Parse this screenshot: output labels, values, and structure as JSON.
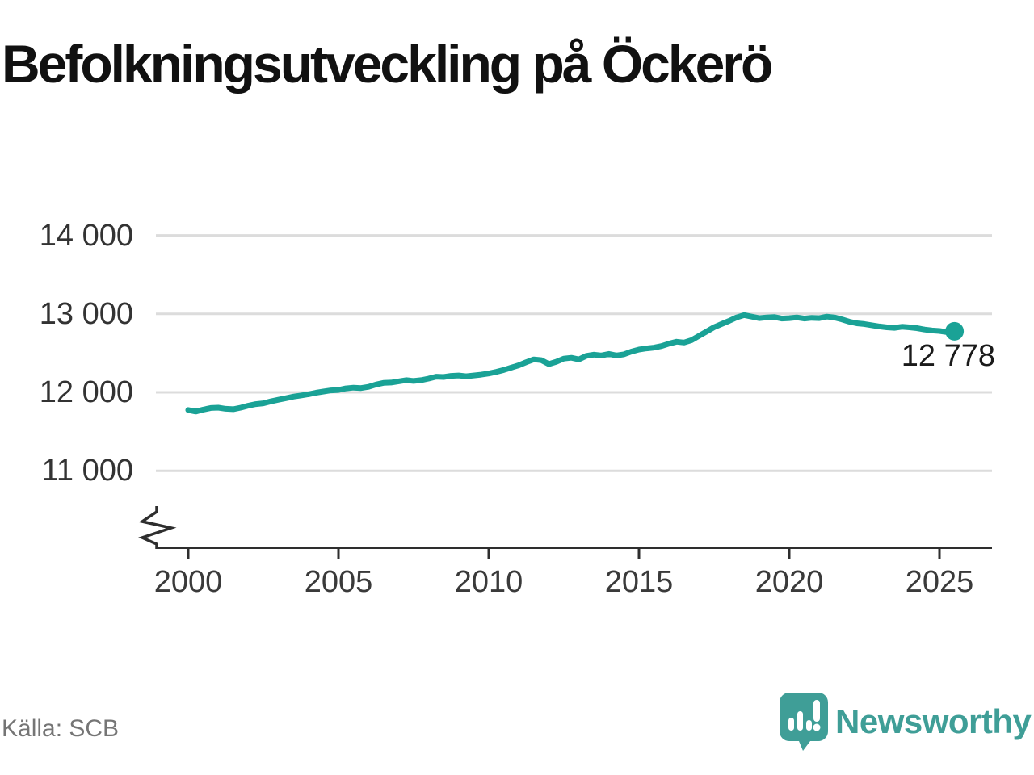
{
  "title": "Befolkningsutveckling på Öckerö",
  "source": "Källa: SCB",
  "branding": {
    "wordmark": "Newsworthy",
    "icon": "newsworthy-speech-bubble-barchart-icon"
  },
  "colors": {
    "line": "#1aa296",
    "grid": "#dcdcdc",
    "axis": "#2e2e2e",
    "brand": "#3f9e97",
    "title_text": "#111111",
    "tick_text": "#333333",
    "source_text": "#757575",
    "value_label_text": "#1a1a1a",
    "background": "#ffffff"
  },
  "chart_data": {
    "type": "line",
    "title": "Befolkningsutveckling på Öckerö",
    "xlabel": "",
    "ylabel": "",
    "grid": "horizontal",
    "legend": "none",
    "y_axis_break": true,
    "xlim": [
      1998.9,
      2026.7
    ],
    "ylim": [
      11000,
      14000
    ],
    "x_ticks": [
      2000,
      2005,
      2010,
      2015,
      2020,
      2025
    ],
    "y_ticks": [
      "14 000",
      "13 000",
      "12 000",
      "11 000"
    ],
    "y_tick_values": [
      14000,
      13000,
      12000,
      11000
    ],
    "end_label": "12 778",
    "last_value": 12778,
    "series": [
      {
        "name": "Befolkning",
        "points": [
          [
            2000.0,
            11775
          ],
          [
            2000.25,
            11755
          ],
          [
            2000.5,
            11780
          ],
          [
            2000.75,
            11800
          ],
          [
            2001.0,
            11805
          ],
          [
            2001.25,
            11790
          ],
          [
            2001.5,
            11785
          ],
          [
            2001.75,
            11805
          ],
          [
            2002.0,
            11830
          ],
          [
            2002.25,
            11850
          ],
          [
            2002.5,
            11860
          ],
          [
            2002.75,
            11885
          ],
          [
            2003.0,
            11905
          ],
          [
            2003.25,
            11925
          ],
          [
            2003.5,
            11945
          ],
          [
            2003.75,
            11960
          ],
          [
            2004.0,
            11975
          ],
          [
            2004.25,
            11995
          ],
          [
            2004.5,
            12010
          ],
          [
            2004.75,
            12025
          ],
          [
            2005.0,
            12030
          ],
          [
            2005.25,
            12050
          ],
          [
            2005.5,
            12060
          ],
          [
            2005.75,
            12055
          ],
          [
            2006.0,
            12070
          ],
          [
            2006.25,
            12100
          ],
          [
            2006.5,
            12120
          ],
          [
            2006.75,
            12125
          ],
          [
            2007.0,
            12140
          ],
          [
            2007.25,
            12155
          ],
          [
            2007.5,
            12145
          ],
          [
            2007.75,
            12155
          ],
          [
            2008.0,
            12175
          ],
          [
            2008.25,
            12200
          ],
          [
            2008.5,
            12195
          ],
          [
            2008.75,
            12210
          ],
          [
            2009.0,
            12215
          ],
          [
            2009.25,
            12205
          ],
          [
            2009.5,
            12215
          ],
          [
            2009.75,
            12225
          ],
          [
            2010.0,
            12240
          ],
          [
            2010.25,
            12260
          ],
          [
            2010.5,
            12285
          ],
          [
            2010.75,
            12315
          ],
          [
            2011.0,
            12345
          ],
          [
            2011.25,
            12385
          ],
          [
            2011.5,
            12420
          ],
          [
            2011.75,
            12410
          ],
          [
            2012.0,
            12360
          ],
          [
            2012.25,
            12390
          ],
          [
            2012.5,
            12430
          ],
          [
            2012.75,
            12440
          ],
          [
            2013.0,
            12420
          ],
          [
            2013.25,
            12465
          ],
          [
            2013.5,
            12480
          ],
          [
            2013.75,
            12470
          ],
          [
            2014.0,
            12490
          ],
          [
            2014.25,
            12470
          ],
          [
            2014.5,
            12485
          ],
          [
            2014.75,
            12520
          ],
          [
            2015.0,
            12545
          ],
          [
            2015.25,
            12560
          ],
          [
            2015.5,
            12570
          ],
          [
            2015.75,
            12590
          ],
          [
            2016.0,
            12620
          ],
          [
            2016.25,
            12645
          ],
          [
            2016.5,
            12635
          ],
          [
            2016.75,
            12665
          ],
          [
            2017.0,
            12720
          ],
          [
            2017.25,
            12775
          ],
          [
            2017.5,
            12830
          ],
          [
            2017.75,
            12870
          ],
          [
            2018.0,
            12910
          ],
          [
            2018.25,
            12955
          ],
          [
            2018.5,
            12985
          ],
          [
            2018.75,
            12965
          ],
          [
            2019.0,
            12945
          ],
          [
            2019.25,
            12955
          ],
          [
            2019.5,
            12960
          ],
          [
            2019.75,
            12940
          ],
          [
            2020.0,
            12945
          ],
          [
            2020.25,
            12955
          ],
          [
            2020.5,
            12940
          ],
          [
            2020.75,
            12950
          ],
          [
            2021.0,
            12945
          ],
          [
            2021.25,
            12965
          ],
          [
            2021.5,
            12955
          ],
          [
            2021.75,
            12930
          ],
          [
            2022.0,
            12900
          ],
          [
            2022.25,
            12880
          ],
          [
            2022.5,
            12870
          ],
          [
            2022.75,
            12855
          ],
          [
            2023.0,
            12840
          ],
          [
            2023.25,
            12828
          ],
          [
            2023.5,
            12822
          ],
          [
            2023.75,
            12835
          ],
          [
            2024.0,
            12828
          ],
          [
            2024.25,
            12818
          ],
          [
            2024.5,
            12800
          ],
          [
            2024.75,
            12788
          ],
          [
            2025.0,
            12782
          ],
          [
            2025.25,
            12768
          ],
          [
            2025.5,
            12778
          ]
        ]
      }
    ]
  }
}
